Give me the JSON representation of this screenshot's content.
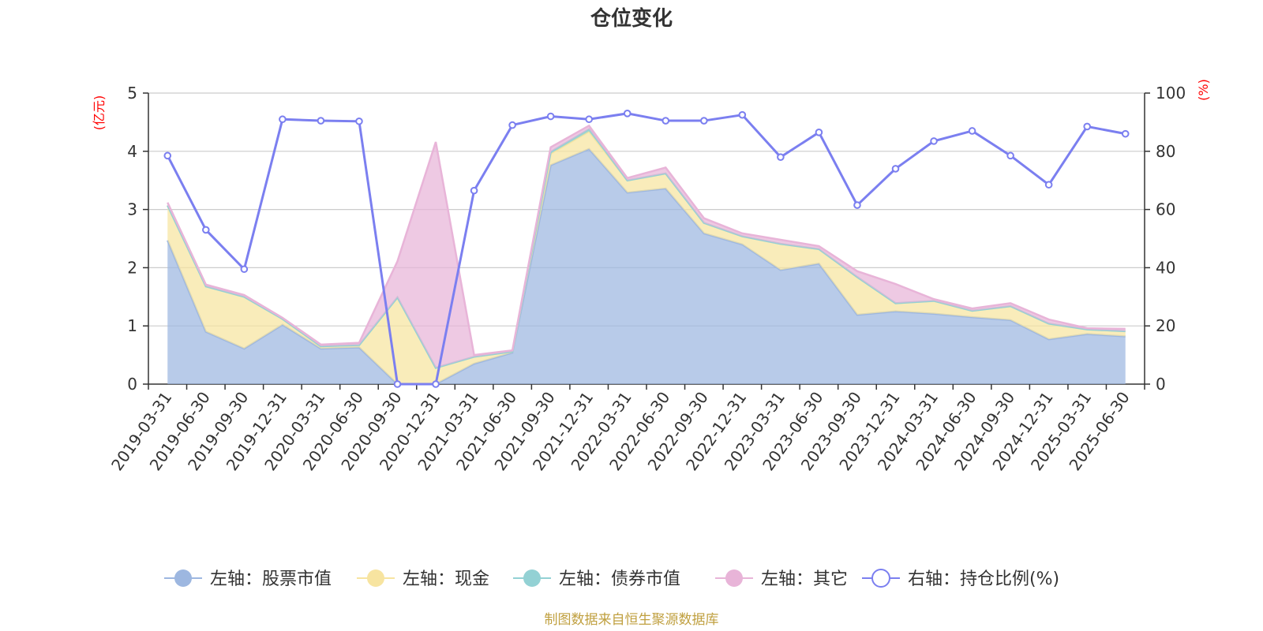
{
  "chart_data": {
    "type": "area",
    "title": "仓位变化",
    "left_axis_unit": "(亿元)",
    "right_axis_unit": "(%)",
    "y_left": {
      "min": 0,
      "max": 5,
      "ticks": [
        "0",
        "1",
        "2",
        "3",
        "4",
        "5"
      ]
    },
    "y_right": {
      "min": 0,
      "max": 100,
      "ticks": [
        "0",
        "20",
        "40",
        "60",
        "80",
        "100"
      ]
    },
    "grid": true,
    "legend_position": "bottom",
    "categories": [
      "2019-03-31",
      "2019-06-30",
      "2019-09-30",
      "2019-12-31",
      "2020-03-31",
      "2020-06-30",
      "2020-09-30",
      "2020-12-31",
      "2021-03-31",
      "2021-06-30",
      "2021-09-30",
      "2021-12-31",
      "2022-03-31",
      "2022-06-30",
      "2022-09-30",
      "2022-12-31",
      "2023-03-31",
      "2023-06-30",
      "2023-09-30",
      "2023-12-31",
      "2024-03-31",
      "2024-06-30",
      "2024-09-30",
      "2024-12-31",
      "2025-03-31",
      "2025-06-30"
    ],
    "series": [
      {
        "name": "左轴：股票市值",
        "axis": "left",
        "stack": true,
        "color": "#9db7e0",
        "values": [
          2.47,
          0.9,
          0.61,
          1.02,
          0.61,
          0.63,
          0.0,
          0.0,
          0.35,
          0.54,
          3.76,
          4.04,
          3.29,
          3.36,
          2.59,
          2.4,
          1.96,
          2.07,
          1.19,
          1.25,
          1.21,
          1.15,
          1.1,
          0.77,
          0.86,
          0.82
        ]
      },
      {
        "name": "左轴：现金",
        "axis": "left",
        "stack": true,
        "color": "#f7e4a0",
        "values": [
          0.6,
          0.78,
          0.89,
          0.1,
          0.04,
          0.04,
          1.49,
          0.28,
          0.12,
          0.02,
          0.2,
          0.3,
          0.21,
          0.26,
          0.18,
          0.14,
          0.45,
          0.25,
          0.65,
          0.14,
          0.22,
          0.11,
          0.24,
          0.27,
          0.08,
          0.09
        ]
      },
      {
        "name": "左轴：债券市值",
        "axis": "left",
        "stack": true,
        "color": "#93d1d4",
        "values": [
          0,
          0,
          0,
          0,
          0,
          0,
          0,
          0,
          0,
          0,
          0.03,
          0.04,
          0,
          0,
          0,
          0,
          0,
          0,
          0,
          0,
          0,
          0,
          0,
          0,
          0,
          0
        ]
      },
      {
        "name": "左轴：其它",
        "axis": "left",
        "stack": true,
        "color": "#e8b4d8",
        "values": [
          0.05,
          0.03,
          0.03,
          0.02,
          0.03,
          0.04,
          0.62,
          3.88,
          0.03,
          0.02,
          0.08,
          0.06,
          0.04,
          0.1,
          0.08,
          0.05,
          0.07,
          0.05,
          0.1,
          0.33,
          0.03,
          0.04,
          0.05,
          0.07,
          0.02,
          0.04
        ]
      },
      {
        "name": "右轴：持仓比例(%)",
        "axis": "right",
        "stack": false,
        "color": "#7b7ff0",
        "values": [
          78.5,
          53.0,
          39.5,
          91.0,
          90.5,
          90.3,
          0.0,
          0.0,
          66.5,
          89.0,
          92.0,
          91.0,
          93.0,
          90.5,
          90.5,
          92.5,
          78.0,
          86.5,
          61.5,
          74.0,
          83.5,
          87.0,
          78.5,
          68.5,
          88.5,
          86.0
        ]
      }
    ]
  },
  "footer": {
    "source": "制图数据来自恒生聚源数据库"
  }
}
